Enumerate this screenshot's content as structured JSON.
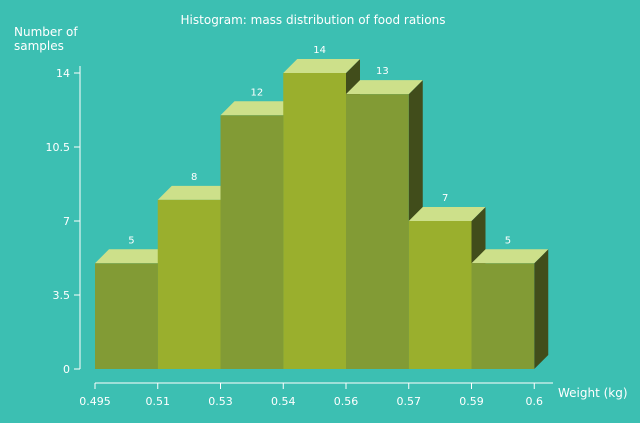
{
  "chart_data": {
    "type": "bar",
    "title": "Histogram: mass distribution of food rations",
    "ylabel": [
      "Number of",
      "samples"
    ],
    "xlabel": "Weight (kg)",
    "ylim": [
      0,
      14
    ],
    "yticks": [
      "0",
      "3.5",
      "7",
      "10.5",
      "14"
    ],
    "bin_edges": [
      "0.495",
      "0.51",
      "0.53",
      "0.54",
      "0.56",
      "0.57",
      "0.59",
      "0.6"
    ],
    "values": [
      5,
      8,
      12,
      14,
      13,
      7,
      5
    ],
    "grid": false,
    "legend": "none"
  },
  "colors": {
    "background": "#3cbfb2",
    "bar_front_dark": "#829b35",
    "bar_front_light": "#9aaf2d",
    "bar_top": "#cde08a",
    "bar_side": "#414d1b",
    "axis": "#ffffff",
    "text": "#ffffff"
  }
}
